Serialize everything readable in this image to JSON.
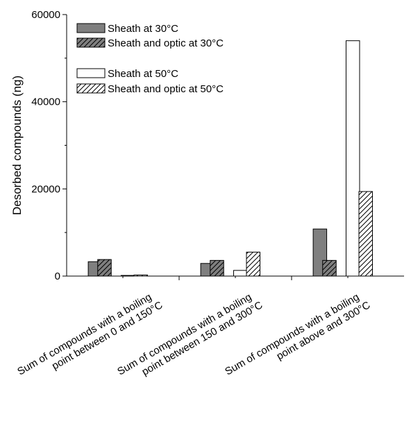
{
  "chart_data": {
    "type": "bar",
    "ylabel": "Desorbed compounds (ng)",
    "ylim": [
      0,
      60000
    ],
    "yticks": [
      "0",
      "20000",
      "40000",
      "60000"
    ],
    "grid": false,
    "legend_position": "top-left",
    "categories": [
      [
        "Sum of compounds with a boiling",
        "point between 0 and 150°C"
      ],
      [
        "Sum of compounds with a boiling",
        "point between 150 and 300°C"
      ],
      [
        "Sum of compounds with a boiling",
        "point above and 300°C"
      ]
    ],
    "series": [
      {
        "name": "Sheath at 30°C",
        "style": "solid-gray",
        "values": [
          3300,
          2900,
          10800
        ]
      },
      {
        "name": "Sheath and optic at 30°C",
        "style": "hatched-gray",
        "values": [
          3800,
          3600,
          3600
        ]
      },
      {
        "name": "Sheath at 50°C",
        "style": "open",
        "values": [
          150,
          1300,
          54000
        ]
      },
      {
        "name": "Sheath and optic at 50°C",
        "style": "hatched-open",
        "values": [
          250,
          5500,
          19400
        ]
      }
    ],
    "colors": {
      "gray": "#7f7f7f",
      "open": "#ffffff",
      "edge": "#000000"
    }
  }
}
